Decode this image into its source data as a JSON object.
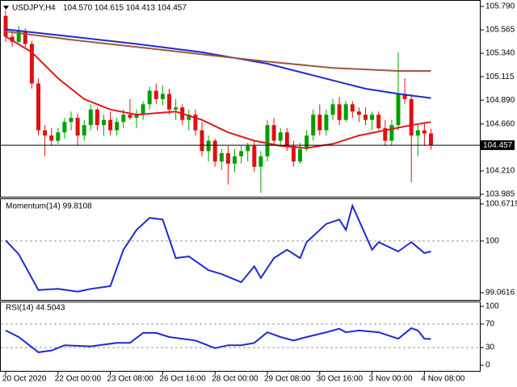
{
  "chart_data": [
    {
      "type": "candlestick",
      "title": "USDJPY,H4",
      "subtitle": "104.570 104.615 104.413 104.457",
      "categories": [
        "20 Oct 2020",
        null,
        null,
        null,
        null,
        null,
        null,
        null,
        "22 Oct 00:00",
        null,
        null,
        null,
        null,
        null,
        null,
        null,
        "23 Oct 08:00",
        null,
        null,
        null,
        null,
        null,
        null,
        null,
        "26 Oct 16:00",
        null,
        null,
        null,
        null,
        null,
        null,
        null,
        "28 Oct 00:00",
        null,
        null,
        null,
        null,
        null,
        null,
        null,
        "29 Oct 08:00",
        null,
        null,
        null,
        null,
        null,
        null,
        null,
        "30 Oct 16:00",
        null,
        null,
        null,
        null,
        null,
        null,
        null,
        "3 Nov 00:00",
        null,
        null,
        null,
        null,
        null,
        null,
        null,
        "4 Nov 08:00",
        null
      ],
      "open": [
        105.7,
        105.5,
        105.45,
        105.55,
        105.43,
        105.05,
        104.6,
        104.55,
        104.5,
        104.58,
        104.68,
        104.72,
        104.55,
        104.65,
        104.8,
        104.65,
        104.7,
        104.6,
        104.68,
        104.75,
        104.72,
        104.76,
        104.85,
        104.98,
        104.9,
        104.95,
        104.8,
        104.82,
        104.7,
        104.75,
        104.6,
        104.4,
        104.5,
        104.3,
        104.38,
        104.28,
        104.35,
        104.4,
        104.45,
        104.25,
        104.35,
        104.65,
        104.5,
        104.58,
        104.45,
        104.3,
        104.42,
        104.55,
        104.75,
        104.6,
        104.75,
        104.85,
        104.7,
        104.85,
        104.78,
        104.75,
        104.7,
        104.75,
        104.62,
        104.5,
        104.65,
        104.95,
        104.9,
        104.55,
        104.6,
        104.57
      ],
      "high": [
        105.75,
        105.56,
        105.6,
        105.58,
        105.46,
        105.1,
        104.65,
        104.62,
        104.62,
        104.72,
        104.78,
        104.76,
        104.7,
        104.85,
        104.82,
        104.75,
        104.78,
        104.72,
        104.8,
        104.9,
        104.8,
        104.88,
        105.02,
        105.05,
        105.03,
        105.0,
        104.9,
        104.85,
        104.8,
        104.8,
        104.68,
        104.55,
        104.52,
        104.42,
        104.45,
        104.42,
        104.45,
        104.48,
        104.5,
        104.4,
        104.7,
        104.72,
        104.62,
        104.62,
        104.5,
        104.48,
        104.6,
        104.8,
        104.85,
        104.8,
        104.9,
        104.92,
        104.88,
        104.88,
        104.82,
        104.82,
        104.78,
        104.78,
        104.7,
        104.7,
        105.35,
        105.1,
        104.95,
        104.65,
        104.68,
        104.615
      ],
      "low": [
        105.45,
        105.4,
        105.42,
        105.4,
        105.0,
        104.55,
        104.35,
        104.45,
        104.47,
        104.52,
        104.6,
        104.45,
        104.5,
        104.6,
        104.6,
        104.55,
        104.55,
        104.55,
        104.62,
        104.7,
        104.62,
        104.7,
        104.8,
        104.85,
        104.84,
        104.75,
        104.7,
        104.65,
        104.6,
        104.55,
        104.35,
        104.3,
        104.25,
        104.22,
        104.08,
        104.2,
        104.28,
        104.3,
        104.2,
        104.0,
        104.3,
        104.45,
        104.45,
        104.4,
        104.25,
        104.28,
        104.4,
        104.5,
        104.55,
        104.55,
        104.7,
        104.65,
        104.68,
        104.72,
        104.68,
        104.65,
        104.6,
        104.6,
        104.45,
        104.45,
        104.6,
        104.85,
        104.1,
        104.35,
        104.45,
        104.413
      ],
      "close": [
        105.5,
        105.45,
        105.55,
        105.43,
        105.05,
        104.6,
        104.55,
        104.5,
        104.58,
        104.68,
        104.72,
        104.55,
        104.65,
        104.8,
        104.65,
        104.7,
        104.6,
        104.68,
        104.75,
        104.72,
        104.76,
        104.85,
        104.98,
        104.9,
        104.95,
        104.8,
        104.82,
        104.7,
        104.75,
        104.6,
        104.4,
        104.5,
        104.3,
        104.38,
        104.28,
        104.35,
        104.4,
        104.45,
        104.25,
        104.35,
        104.65,
        104.5,
        104.58,
        104.45,
        104.3,
        104.42,
        104.55,
        104.75,
        104.6,
        104.75,
        104.85,
        104.7,
        104.85,
        104.78,
        104.75,
        104.7,
        104.75,
        104.62,
        104.5,
        104.65,
        104.95,
        104.9,
        104.55,
        104.6,
        104.57,
        104.457
      ],
      "up_color": "#00a000",
      "down_color": "#e01010",
      "overlays": [
        {
          "color": "#1e2ad2",
          "x": [
            0,
            10,
            20,
            30,
            40,
            50,
            55,
            60,
            65
          ],
          "values": [
            105.57,
            105.5,
            105.43,
            105.35,
            105.24,
            105.08,
            105.0,
            104.95,
            104.91
          ]
        },
        {
          "color": "#a0583c",
          "x": [
            0,
            10,
            20,
            30,
            40,
            50,
            60,
            65
          ],
          "values": [
            105.55,
            105.47,
            105.4,
            105.33,
            105.26,
            105.2,
            105.17,
            105.17
          ]
        },
        {
          "color": "#e01818",
          "x": [
            0,
            4,
            8,
            12,
            16,
            20,
            26,
            30,
            34,
            38,
            42,
            46,
            50,
            54,
            58,
            62,
            65
          ],
          "values": [
            105.5,
            105.35,
            105.1,
            104.9,
            104.8,
            104.75,
            104.78,
            104.7,
            104.58,
            104.5,
            104.45,
            104.43,
            104.47,
            104.55,
            104.6,
            104.65,
            104.68
          ]
        }
      ],
      "last_price": 104.457,
      "ylim": [
        103.954,
        105.852
      ],
      "yticks": [
        {
          "value": 105.79,
          "label": "105.790"
        },
        105.565,
        {
          "value": 105.34,
          "label": "105.340"
        },
        105.115,
        {
          "value": 104.89,
          "label": "104.890"
        },
        {
          "value": 104.66,
          "label": "104.660"
        },
        {
          "value": 104.21,
          "label": "104.210"
        },
        103.985
      ]
    },
    {
      "type": "line",
      "title": "Momentum(14) 99.8108",
      "color": "#1e2ad2",
      "grid": "dashed",
      "x": [
        0,
        2,
        5,
        8,
        11,
        13,
        16,
        18,
        20,
        22,
        24,
        26,
        28,
        31,
        33,
        36,
        38,
        39,
        41,
        43,
        45,
        46,
        49,
        51,
        52,
        53,
        56,
        57,
        60,
        62,
        64,
        65
      ],
      "values": [
        100.01,
        99.76,
        99.11,
        99.13,
        99.08,
        99.13,
        99.18,
        99.84,
        100.2,
        100.42,
        100.39,
        99.69,
        99.72,
        99.47,
        99.4,
        99.25,
        99.54,
        99.33,
        99.69,
        99.84,
        99.69,
        99.98,
        100.31,
        100.39,
        100.2,
        100.64,
        99.84,
        99.98,
        99.81,
        99.98,
        99.78,
        99.81
      ],
      "ylim": [
        99.0616,
        100.6719
      ],
      "yticks": [
        100.6719,
        100,
        99.0616
      ]
    },
    {
      "type": "line",
      "title": "RSI(14) 44.5043",
      "color": "#1e2ad2",
      "grid": "dashed",
      "x": [
        0,
        2,
        5,
        7,
        9,
        13,
        17,
        19,
        21,
        23,
        25,
        29,
        32,
        34,
        36,
        38,
        40,
        42,
        44,
        46,
        49,
        51,
        52,
        54,
        57,
        60,
        62,
        63,
        64,
        65
      ],
      "values": [
        59,
        48,
        22,
        25,
        34,
        32,
        38,
        38,
        55,
        55,
        48,
        42,
        29,
        34,
        34,
        38,
        56,
        48,
        42,
        48,
        56,
        62,
        56,
        59,
        56,
        45,
        63,
        59,
        45,
        44.5
      ],
      "ylim": [
        0,
        100
      ],
      "yticks": [
        100,
        70,
        30,
        0
      ]
    }
  ]
}
